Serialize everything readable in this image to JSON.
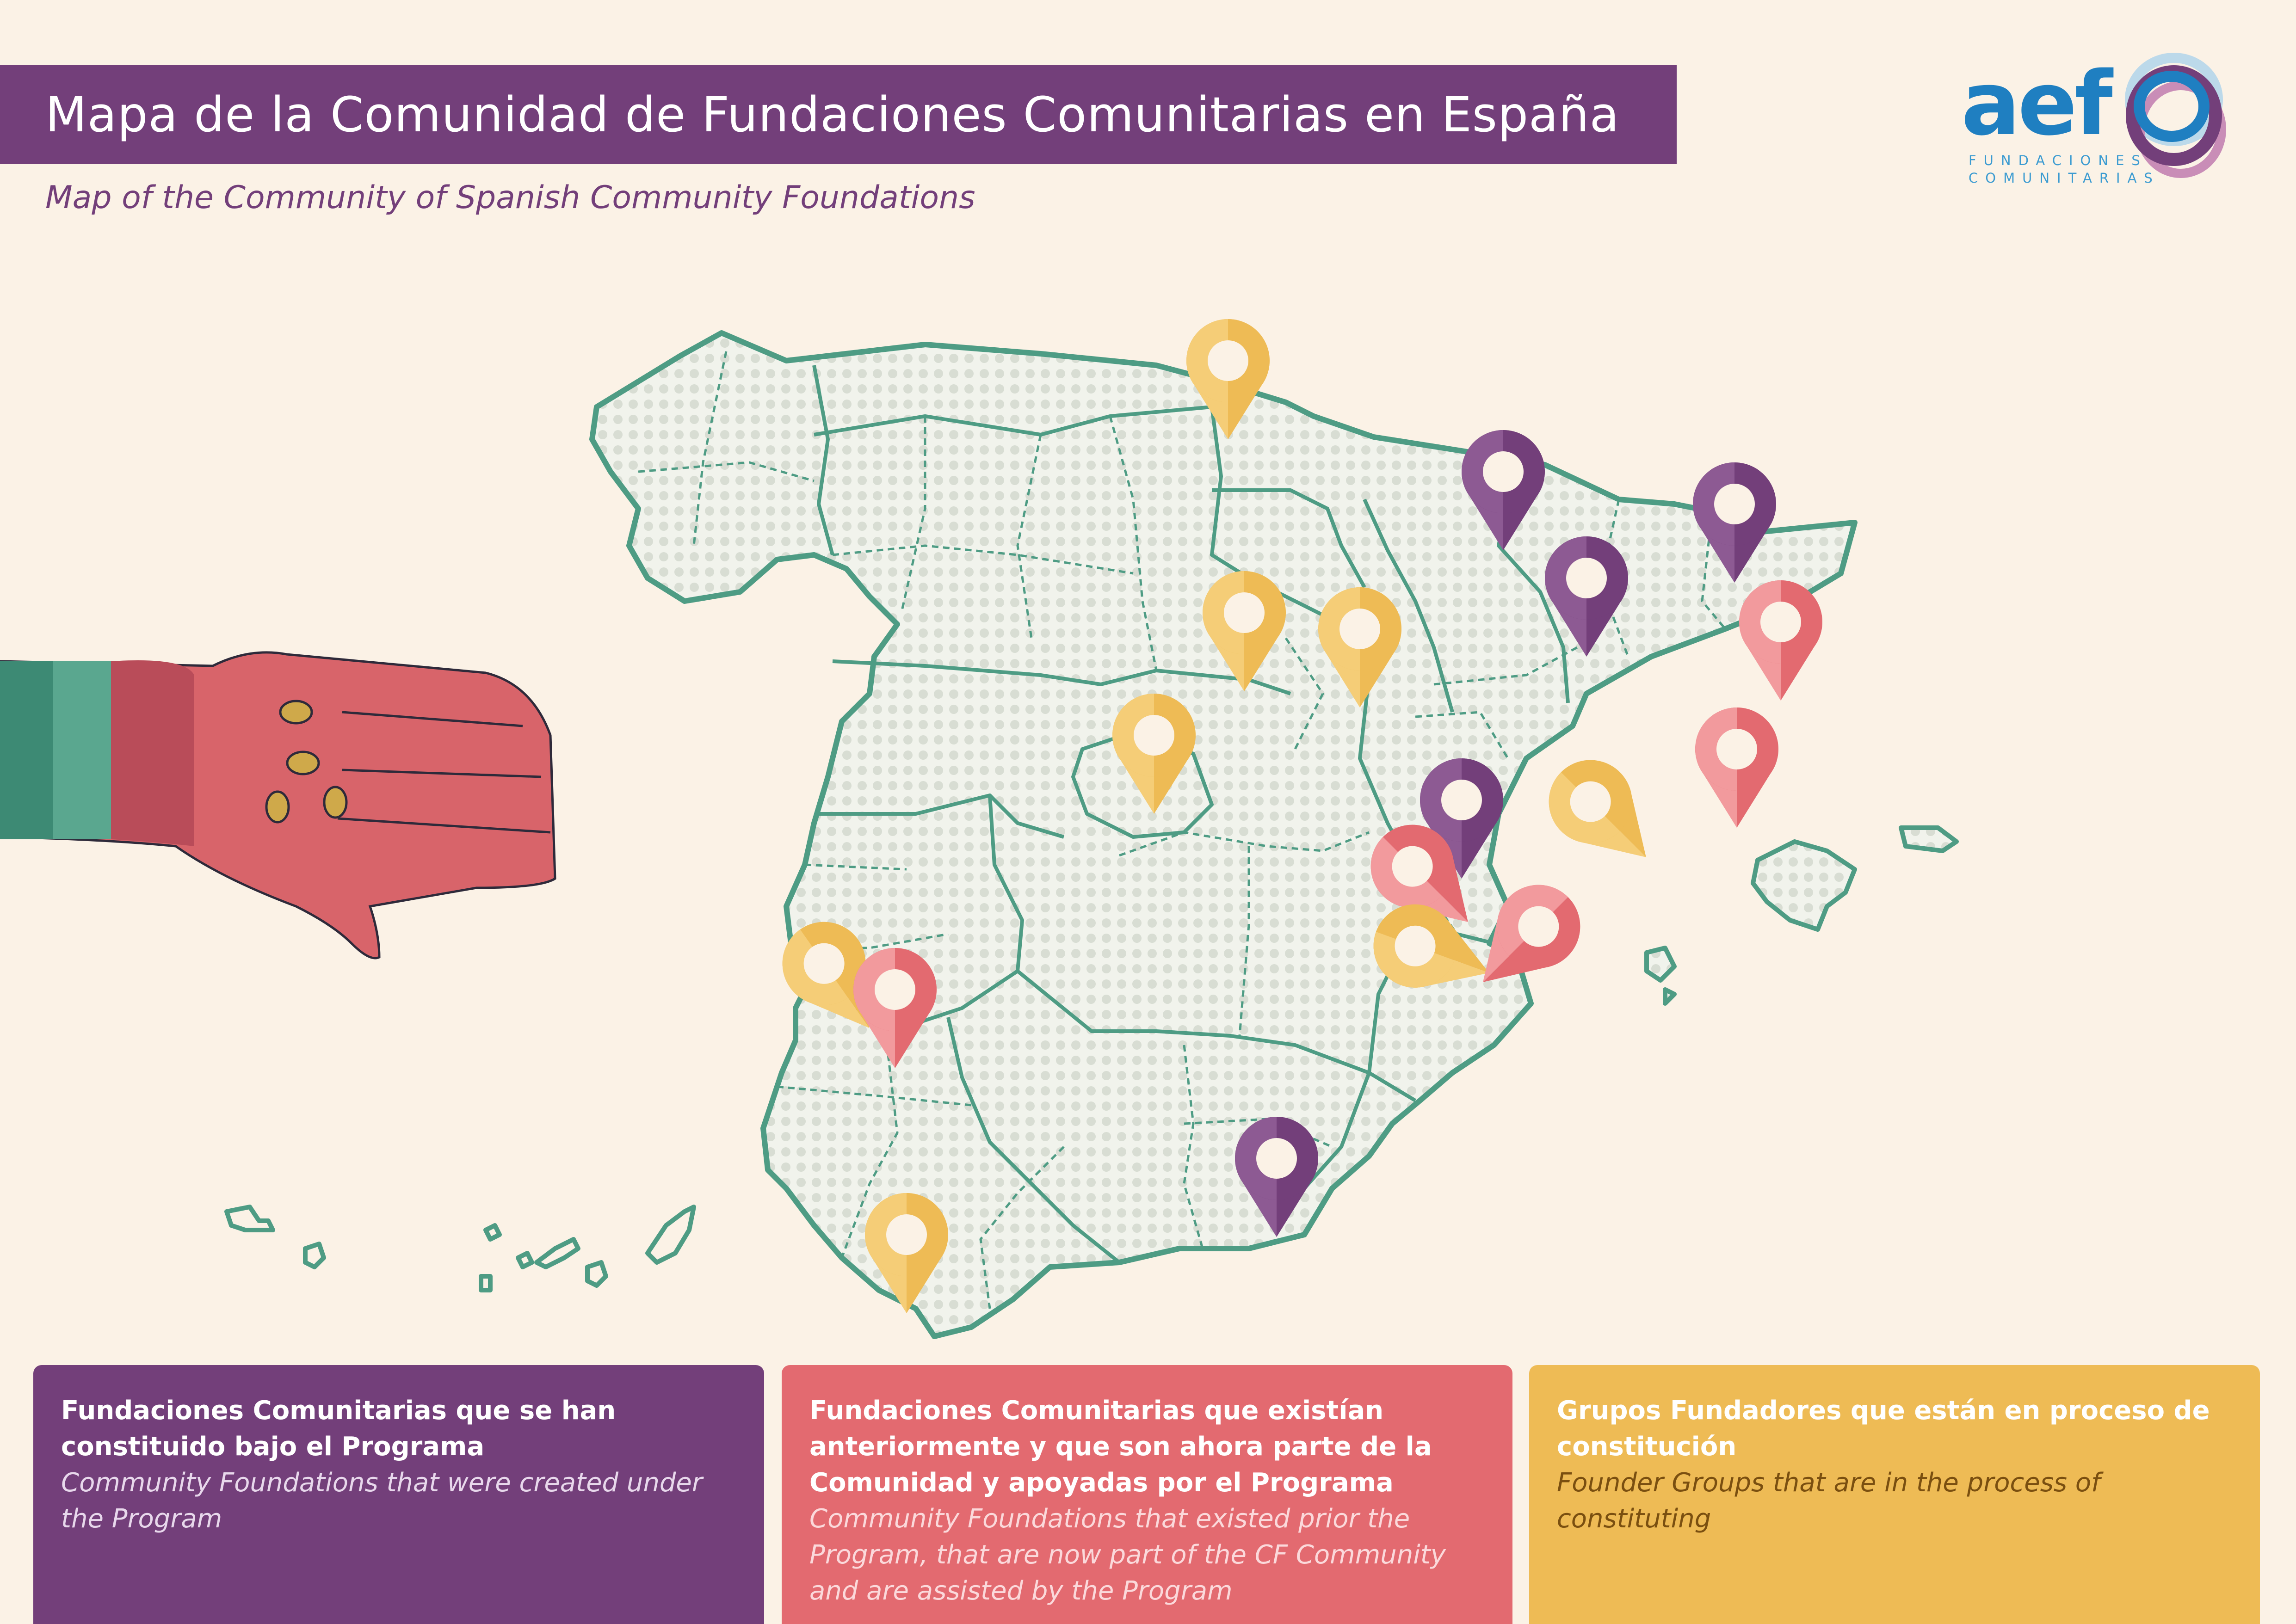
{
  "header": {
    "title": "Mapa de la Comunidad de Fundaciones Comunitarias en España",
    "subtitle": "Map of the Community of Spanish Community Foundations"
  },
  "logo": {
    "wordmark": "aef",
    "line1": "FUNDACIONES",
    "line2": "COMUNITARIAS",
    "colors": {
      "blue": "#1f7fc1",
      "purple": "#733f7a",
      "lightblue": "#bcd9ea",
      "pink": "#c98db7"
    }
  },
  "colors": {
    "purple": "#733f7a",
    "pink": "#e36a70",
    "yellow": "#eebb55",
    "map_outline": "#4e9c84",
    "map_fill": "#e7ece3",
    "background": "#fbf2e6"
  },
  "legend": [
    {
      "category": "purple",
      "es": "Fundaciones Comunitarias que se han constituido bajo el Programa",
      "en": "Community Foundations that were created under the Program"
    },
    {
      "category": "pink",
      "es": "Fundaciones Comunitarias que existían anteriormente y que son ahora parte de la Comunidad y apoyadas por el Programa",
      "en": "Community Foundations that existed prior the Program, that are now part of the CF Community and are assisted by the Program"
    },
    {
      "category": "yellow",
      "es": "Grupos Fundadores que están en proceso de constitución",
      "en": "Founder Groups that are in the process of constituting"
    }
  ],
  "markers": [
    {
      "category": "yellow",
      "region": "Cantabria"
    },
    {
      "category": "purple",
      "region": "Huesca"
    },
    {
      "category": "purple",
      "region": "Girona"
    },
    {
      "category": "purple",
      "region": "Lleida"
    },
    {
      "category": "pink",
      "region": "Barcelona"
    },
    {
      "category": "pink",
      "region": "Tarragona"
    },
    {
      "category": "yellow",
      "region": "Burgos"
    },
    {
      "category": "yellow",
      "region": "La Rioja"
    },
    {
      "category": "yellow",
      "region": "Segovia"
    },
    {
      "category": "purple",
      "region": "Teruel"
    },
    {
      "category": "yellow",
      "region": "Castellón"
    },
    {
      "category": "pink",
      "region": "Cuenca"
    },
    {
      "category": "yellow",
      "region": "Albacete"
    },
    {
      "category": "pink",
      "region": "Valencia"
    },
    {
      "category": "yellow",
      "region": "Cáceres"
    },
    {
      "category": "pink",
      "region": "Badajoz"
    },
    {
      "category": "purple",
      "region": "Granada"
    },
    {
      "category": "yellow",
      "region": "Sevilla"
    }
  ]
}
